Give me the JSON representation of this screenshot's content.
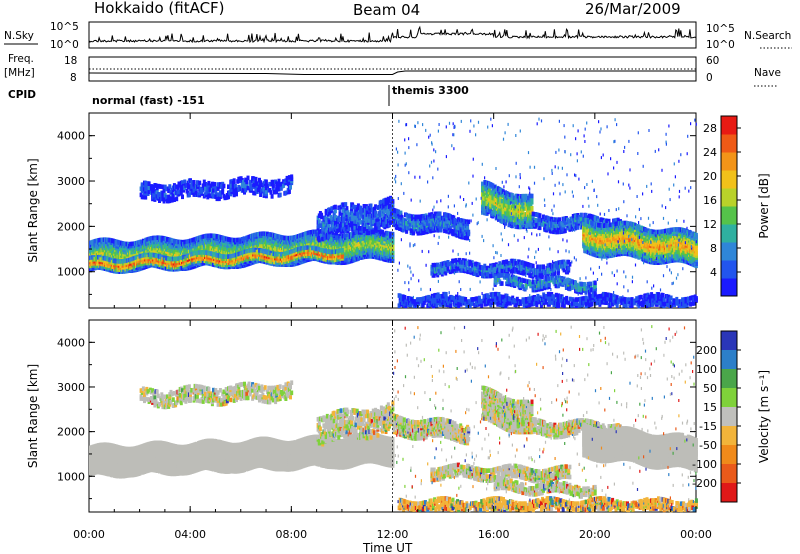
{
  "header": {
    "station": "Hokkaido (fitACF)",
    "beam": "Beam 04",
    "date": "26/Mar/2009"
  },
  "strips": {
    "nsky_label": "N.Sky",
    "nsearch_label": "N.Search",
    "noise_ticks": [
      "10^5",
      "10^0"
    ],
    "freq_label_1": "Freq.",
    "freq_label_2": "[MHz]",
    "freq_ticks": [
      "18",
      "8"
    ],
    "nave_label": "Nave",
    "nave_ticks": [
      "60",
      "0"
    ],
    "cpid_label": "CPID",
    "cpid_modes": [
      "normal (fast) -151",
      "themis 3300"
    ]
  },
  "chart_data": [
    {
      "type": "heatmap",
      "title": "",
      "ylabel": "Slant Range [km]",
      "xlabel": "Time UT",
      "x_ticks": [
        "00:00",
        "04:00",
        "08:00",
        "12:00",
        "16:00",
        "20:00",
        "00:00"
      ],
      "y_ticks": [
        1000,
        2000,
        3000,
        4000
      ],
      "ylim": [
        200,
        4500
      ],
      "xlim_hours": [
        0,
        24
      ],
      "colorbar": {
        "label": "Power [dB]",
        "ticks": [
          4,
          8,
          12,
          16,
          20,
          24,
          28
        ],
        "colors": [
          "#1a1aff",
          "#2255ee",
          "#2f86d8",
          "#2fb0a0",
          "#55c34a",
          "#b9d22a",
          "#f2c11a",
          "#f39418",
          "#ef5a16",
          "#e81a14"
        ]
      }
    },
    {
      "type": "heatmap",
      "title": "",
      "ylabel": "Slant Range [km]",
      "xlabel": "Time UT",
      "x_ticks": [
        "00:00",
        "04:00",
        "08:00",
        "12:00",
        "16:00",
        "20:00",
        "00:00"
      ],
      "y_ticks": [
        1000,
        2000,
        3000,
        4000
      ],
      "ylim": [
        200,
        4500
      ],
      "xlim_hours": [
        0,
        24
      ],
      "colorbar": {
        "label": "Velocity [m s⁻¹]",
        "ticks": [
          200,
          100,
          50,
          15,
          -15,
          -50,
          -100,
          -200
        ],
        "colors": [
          "#2a36b8",
          "#2c7fc9",
          "#4aa64a",
          "#7fd23a",
          "#c0c0bc",
          "#f2b43a",
          "#f08a1a",
          "#ea5a1a",
          "#e01818"
        ]
      }
    }
  ],
  "colors": {
    "ground_scatter": "#bdbdb8"
  }
}
